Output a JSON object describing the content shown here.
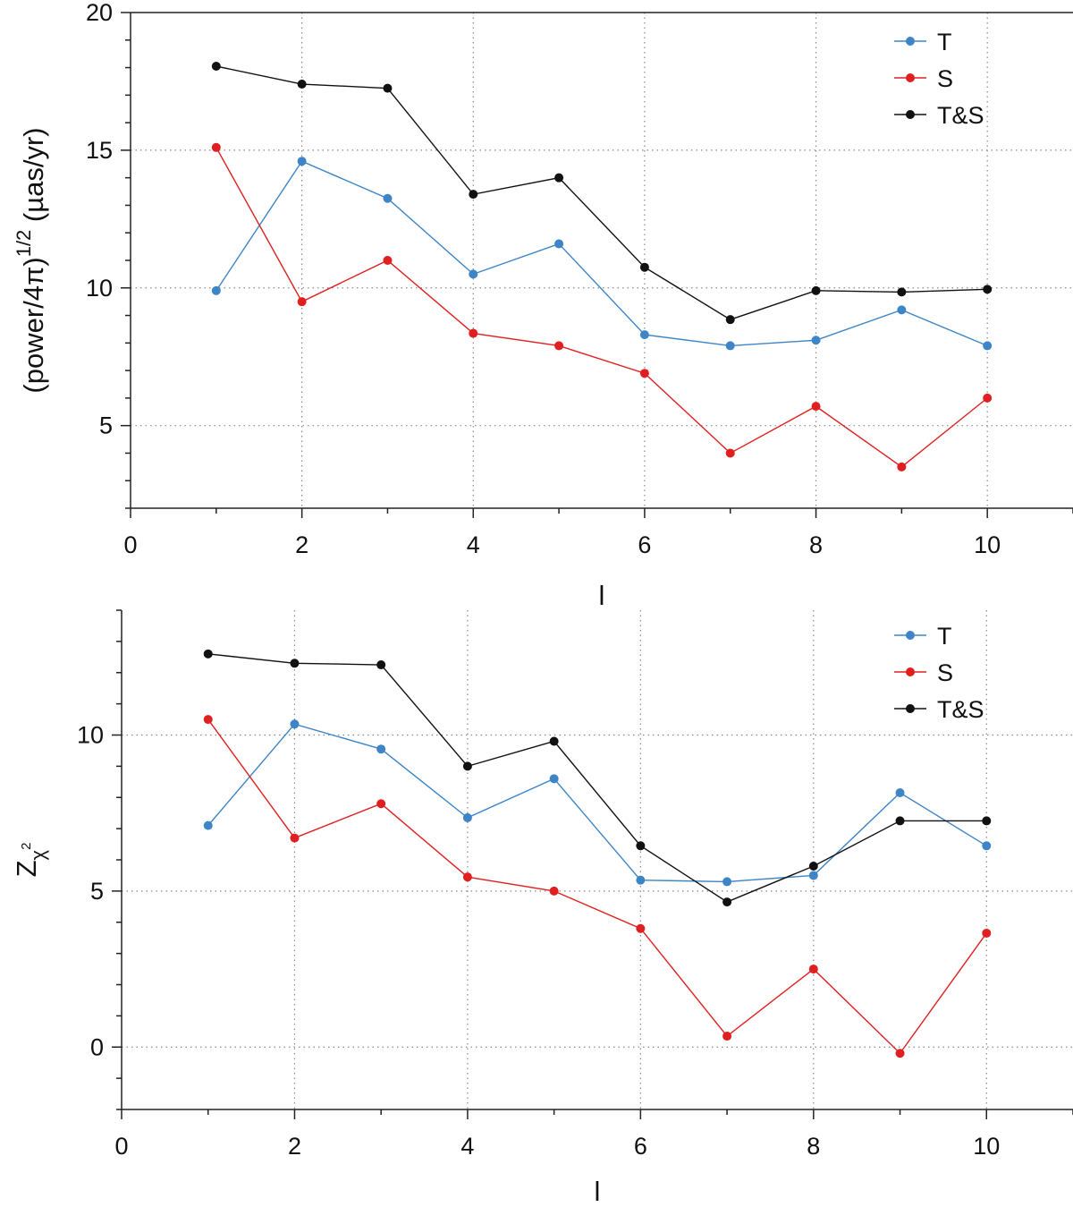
{
  "chart_data": [
    {
      "type": "line",
      "title": "",
      "xlabel": "l",
      "ylabel_main": "(power/4π)",
      "ylabel_sup": "1/2",
      "ylabel_unit": " (µas/yr)",
      "x": [
        1,
        2,
        3,
        4,
        5,
        6,
        7,
        8,
        9,
        10
      ],
      "xlim": [
        0,
        11
      ],
      "ylim": [
        2,
        20
      ],
      "xticks": [
        0,
        2,
        4,
        6,
        8,
        10
      ],
      "xtick_labels": [
        "0",
        "2",
        "4",
        "6",
        "8",
        "10"
      ],
      "yticks": [
        5,
        10,
        15,
        20
      ],
      "ytick_labels": [
        "5",
        "10",
        "15",
        "20"
      ],
      "grid_x": [
        2,
        4,
        6,
        8,
        10
      ],
      "grid_y": [
        5,
        10,
        15
      ],
      "grid": true,
      "legend_position": "top-right",
      "series": [
        {
          "name": "T",
          "color": "#3d85c6",
          "values": [
            9.9,
            14.6,
            13.25,
            10.5,
            11.6,
            8.3,
            7.9,
            8.1,
            9.2,
            7.9
          ]
        },
        {
          "name": "S",
          "color": "#e02020",
          "values": [
            15.1,
            9.5,
            11.0,
            8.35,
            7.9,
            6.9,
            4.0,
            5.7,
            3.5,
            6.0
          ]
        },
        {
          "name": "T&S",
          "color": "#111111",
          "values": [
            18.05,
            17.4,
            17.25,
            13.4,
            14.0,
            10.75,
            8.85,
            9.9,
            9.85,
            9.95
          ]
        }
      ]
    },
    {
      "type": "line",
      "title": "",
      "xlabel": "l",
      "ylabel_main": "Z",
      "ylabel_sub": "χ",
      "ylabel_subsup": "2",
      "x": [
        1,
        2,
        3,
        4,
        5,
        6,
        7,
        8,
        9,
        10
      ],
      "xlim": [
        0,
        11
      ],
      "ylim": [
        -2,
        14
      ],
      "xticks": [
        0,
        2,
        4,
        6,
        8,
        10
      ],
      "xtick_labels": [
        "0",
        "2",
        "4",
        "6",
        "8",
        "10"
      ],
      "yticks": [
        0,
        5,
        10
      ],
      "ytick_labels": [
        "0",
        "5",
        "10"
      ],
      "grid_x": [
        2,
        4,
        6,
        8,
        10
      ],
      "grid_y": [
        0,
        5,
        10
      ],
      "grid": true,
      "legend_position": "top-right",
      "series": [
        {
          "name": "T",
          "color": "#3d85c6",
          "values": [
            7.1,
            10.35,
            9.55,
            7.35,
            8.6,
            5.35,
            5.3,
            5.5,
            8.15,
            6.45
          ]
        },
        {
          "name": "S",
          "color": "#e02020",
          "values": [
            10.5,
            6.7,
            7.8,
            5.45,
            5.0,
            3.8,
            0.35,
            2.5,
            -0.2,
            3.65
          ]
        },
        {
          "name": "T&S",
          "color": "#111111",
          "values": [
            12.6,
            12.3,
            12.25,
            9.0,
            9.8,
            6.45,
            4.65,
            5.8,
            7.25,
            7.25
          ]
        }
      ]
    }
  ]
}
